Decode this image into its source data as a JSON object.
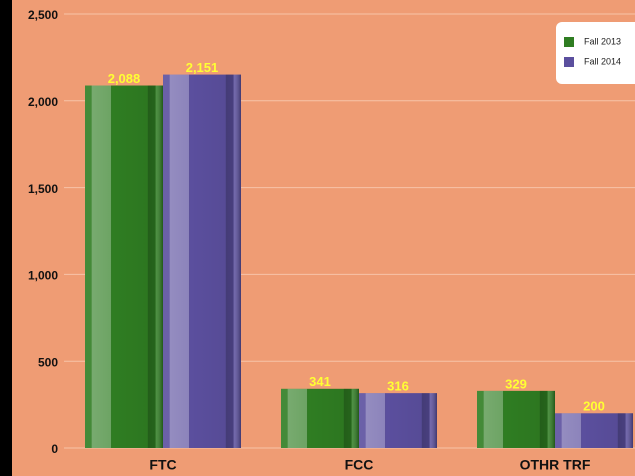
{
  "chart_data": {
    "type": "bar",
    "categories": [
      "FTC",
      "FCC",
      "OTHR TRF"
    ],
    "series": [
      {
        "name": "Fall 2013",
        "color": "#2f7d22",
        "values": [
          2088,
          341,
          329
        ],
        "value_labels": [
          "2,088",
          "341",
          "329"
        ]
      },
      {
        "name": "Fall 2014",
        "color": "#5b4f9e",
        "values": [
          2151,
          316,
          200
        ],
        "value_labels": [
          "2,151",
          "316",
          "200"
        ]
      }
    ],
    "ylim": [
      0,
      2500
    ],
    "yticks": [
      0,
      500,
      {
        "value": 1000,
        "label": "1,000"
      },
      {
        "value": 1500,
        "label": "1,500"
      },
      {
        "value": 2000,
        "label": "2,000"
      },
      {
        "value": 2500,
        "label": "2,500"
      }
    ],
    "grid": true,
    "legend": "top-right"
  }
}
